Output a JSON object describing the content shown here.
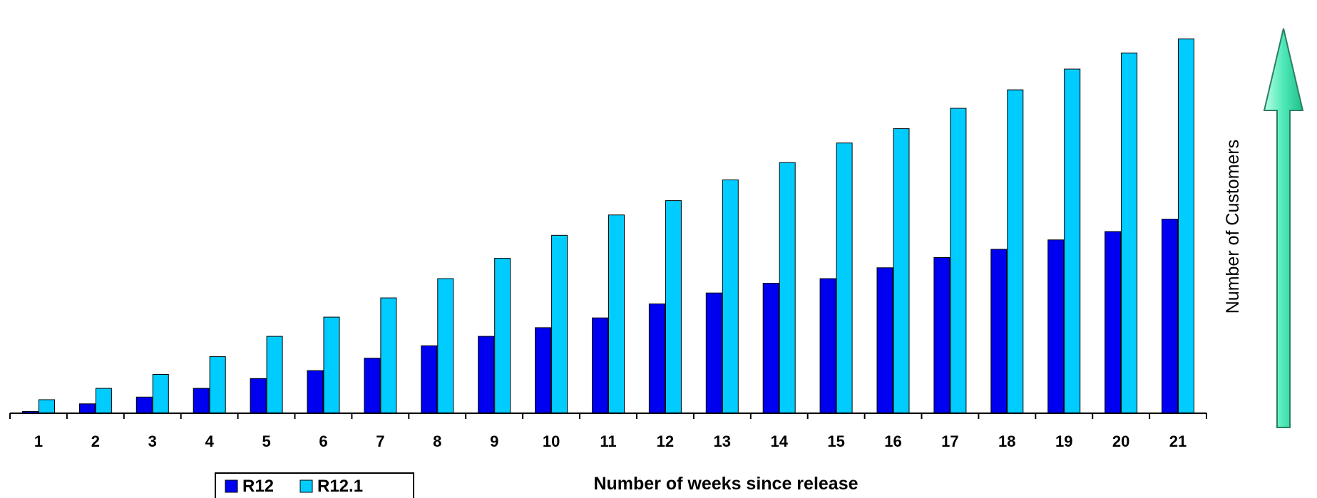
{
  "chart_data": {
    "type": "bar",
    "title": "",
    "xlabel": "Number of weeks since release",
    "ylabel": "Number of Customers",
    "categories": [
      "1",
      "2",
      "3",
      "4",
      "5",
      "6",
      "7",
      "8",
      "9",
      "10",
      "11",
      "12",
      "13",
      "14",
      "15",
      "16",
      "17",
      "18",
      "19",
      "20",
      "21"
    ],
    "series": [
      {
        "name": "R12",
        "color": "#0000f0",
        "values": [
          0.5,
          2.5,
          4.3,
          6.6,
          9.2,
          11.3,
          14.6,
          17.9,
          20.4,
          22.7,
          25.3,
          29.0,
          31.9,
          34.5,
          35.7,
          38.6,
          41.3,
          43.5,
          46.0,
          48.2,
          51.5
        ]
      },
      {
        "name": "R12.1",
        "color": "#00ccff",
        "values": [
          3.6,
          6.6,
          10.3,
          15.0,
          20.4,
          25.5,
          30.6,
          35.7,
          41.1,
          47.2,
          52.6,
          56.4,
          61.9,
          66.5,
          71.7,
          75.5,
          80.9,
          85.8,
          91.3,
          95.6,
          99.3
        ]
      }
    ],
    "ylim": [
      0,
      100
    ],
    "grid": false,
    "y_ticks_shown": false,
    "legend_position": "bottom-left",
    "y_axis_indicator": "up-arrow"
  }
}
